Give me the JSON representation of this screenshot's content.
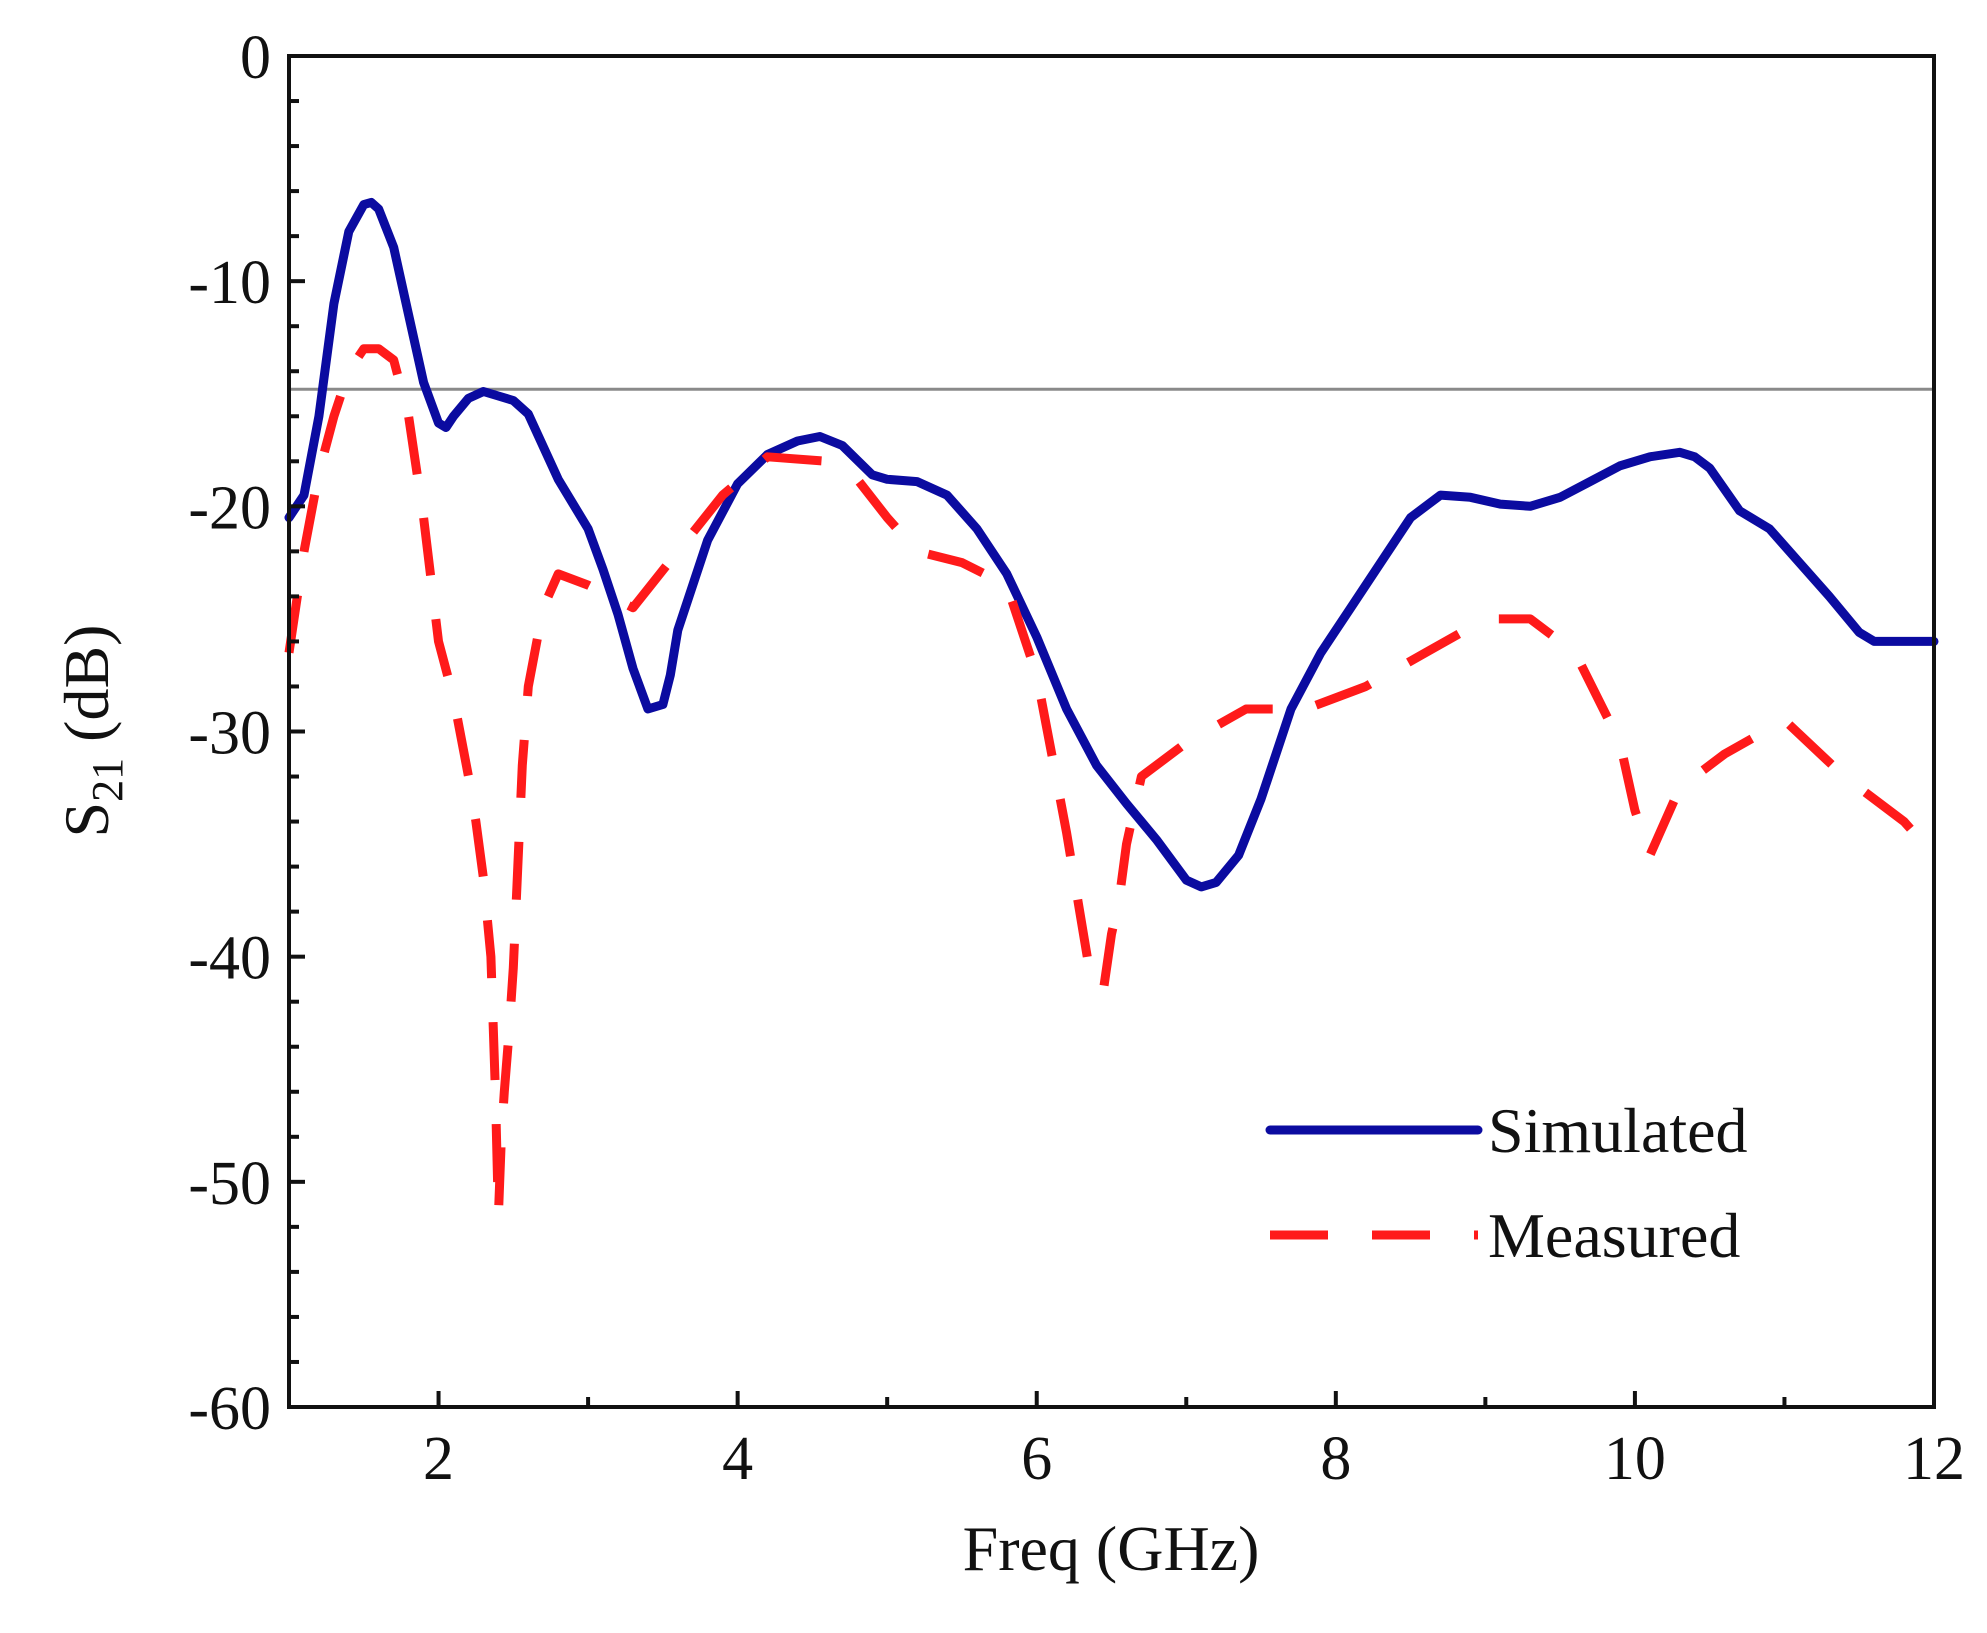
{
  "chart_data": {
    "type": "line",
    "title": "",
    "xlabel": "Freq (GHz)",
    "ylabel_main": "S",
    "ylabel_sub": "21",
    "ylabel_unit": " (dB)",
    "xlim": [
      1,
      12
    ],
    "ylim": [
      -60,
      0
    ],
    "xticks": [
      2,
      4,
      6,
      8,
      10,
      12
    ],
    "yticks": [
      0,
      -10,
      -20,
      -30,
      -40,
      -50,
      -60
    ],
    "xtick_labels": [
      "2",
      "4",
      "6",
      "8",
      "10",
      "12"
    ],
    "ytick_labels": [
      "0",
      "-10",
      "-20",
      "-30",
      "-40",
      "-50",
      "-60"
    ],
    "reference_line": {
      "y": -14.8,
      "color": "#8a8a8a"
    },
    "legend": {
      "position": "bottom-right"
    },
    "series": [
      {
        "name": "Simulated",
        "color": "#0b0ba0",
        "style": "solid",
        "x": [
          1.0,
          1.1,
          1.2,
          1.3,
          1.4,
          1.5,
          1.55,
          1.6,
          1.7,
          1.8,
          1.9,
          2.0,
          2.05,
          2.1,
          2.2,
          2.3,
          2.4,
          2.5,
          2.6,
          2.8,
          3.0,
          3.1,
          3.2,
          3.3,
          3.4,
          3.5,
          3.55,
          3.6,
          3.8,
          4.0,
          4.2,
          4.4,
          4.55,
          4.7,
          4.9,
          5.0,
          5.2,
          5.4,
          5.6,
          5.8,
          6.0,
          6.2,
          6.4,
          6.6,
          6.8,
          7.0,
          7.1,
          7.2,
          7.35,
          7.5,
          7.7,
          7.9,
          8.1,
          8.3,
          8.5,
          8.7,
          8.9,
          9.1,
          9.3,
          9.5,
          9.7,
          9.9,
          10.1,
          10.3,
          10.4,
          10.5,
          10.7,
          10.9,
          11.1,
          11.3,
          11.5,
          11.6,
          11.8,
          12.0
        ],
        "y": [
          -20.5,
          -19.5,
          -16.0,
          -11.0,
          -7.8,
          -6.6,
          -6.5,
          -6.8,
          -8.5,
          -11.5,
          -14.5,
          -16.3,
          -16.5,
          -16.0,
          -15.2,
          -14.9,
          -15.1,
          -15.3,
          -15.9,
          -18.8,
          -21.0,
          -22.8,
          -24.8,
          -27.2,
          -29.0,
          -28.8,
          -27.5,
          -25.5,
          -21.5,
          -19.0,
          -17.7,
          -17.1,
          -16.9,
          -17.3,
          -18.6,
          -18.8,
          -18.9,
          -19.5,
          -21.0,
          -23.0,
          -25.8,
          -29.0,
          -31.5,
          -33.2,
          -34.8,
          -36.6,
          -36.9,
          -36.7,
          -35.5,
          -33.0,
          -29.0,
          -26.5,
          -24.5,
          -22.5,
          -20.5,
          -19.5,
          -19.6,
          -19.9,
          -20.0,
          -19.6,
          -18.9,
          -18.2,
          -17.8,
          -17.6,
          -17.8,
          -18.3,
          -20.2,
          -21.0,
          -22.5,
          -24.0,
          -25.6,
          -26.0,
          -26.0,
          -26.0
        ]
      },
      {
        "name": "Measured",
        "color": "#ff1a1a",
        "style": "dashed",
        "x": [
          1.0,
          1.1,
          1.2,
          1.3,
          1.4,
          1.5,
          1.6,
          1.7,
          1.8,
          1.9,
          2.0,
          2.1,
          2.2,
          2.25,
          2.3,
          2.35,
          2.38,
          2.4,
          2.42,
          2.44,
          2.47,
          2.5,
          2.53,
          2.56,
          2.6,
          2.7,
          2.8,
          3.0,
          3.3,
          3.6,
          3.9,
          4.2,
          4.6,
          4.8,
          5.0,
          5.2,
          5.5,
          5.8,
          6.0,
          6.1,
          6.2,
          6.3,
          6.35,
          6.4,
          6.45,
          6.5,
          6.55,
          6.6,
          6.7,
          7.0,
          7.4,
          7.8,
          8.2,
          8.6,
          9.0,
          9.3,
          9.6,
          9.9,
          10.0,
          10.1,
          10.3,
          10.6,
          11.0,
          11.4,
          11.8,
          12.0
        ],
        "y": [
          -26.5,
          -22.0,
          -18.5,
          -16.0,
          -14.0,
          -13.0,
          -13.0,
          -13.5,
          -16.0,
          -20.5,
          -26.0,
          -28.5,
          -32.0,
          -34.0,
          -36.5,
          -40.0,
          -46.0,
          -51.5,
          -48.0,
          -46.0,
          -43.5,
          -40.5,
          -36.0,
          -31.5,
          -28.0,
          -24.5,
          -23.0,
          -23.5,
          -24.5,
          -22.0,
          -19.5,
          -17.8,
          -18.0,
          -18.8,
          -20.5,
          -22.0,
          -22.5,
          -23.5,
          -27.5,
          -31.0,
          -34.5,
          -38.5,
          -40.5,
          -41.5,
          -41.3,
          -39.0,
          -37.5,
          -35.0,
          -32.0,
          -30.5,
          -29.0,
          -29.0,
          -28.0,
          -26.5,
          -25.0,
          -25.0,
          -26.5,
          -30.5,
          -33.5,
          -35.5,
          -32.5,
          -31.0,
          -29.5,
          -32.0,
          -34.0,
          -35.5
        ]
      }
    ]
  }
}
